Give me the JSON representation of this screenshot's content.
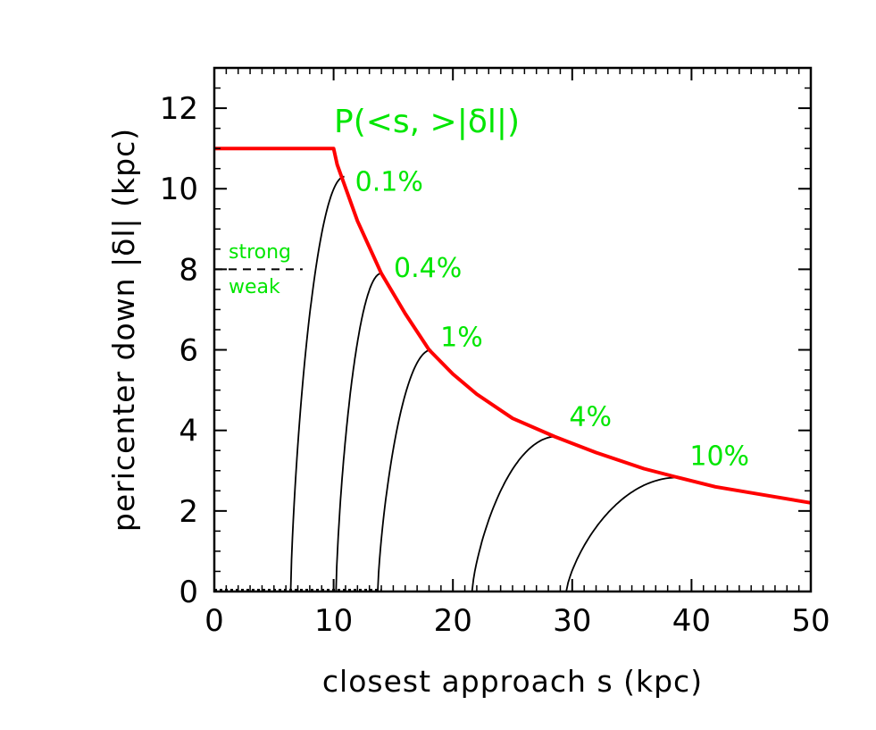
{
  "chart_data": {
    "type": "line",
    "title": "",
    "xlabel": "closest approach s (kpc)",
    "ylabel": "pericenter down |δl| (kpc)",
    "xlim": [
      0,
      50
    ],
    "ylim": [
      0,
      13
    ],
    "x_ticks": [
      0,
      10,
      20,
      30,
      40,
      50
    ],
    "x_tick_labels": [
      "0",
      "10",
      "20",
      "30",
      "40",
      "50"
    ],
    "y_ticks": [
      0,
      2,
      4,
      6,
      8,
      10,
      12
    ],
    "y_tick_labels": [
      "0",
      "2",
      "4",
      "6",
      "8",
      "10",
      "12"
    ],
    "grid": false,
    "colors": {
      "envelope": "#ff0000",
      "labels": "#00e600",
      "curves": "#000000"
    },
    "envelope": {
      "description_plateau": 11,
      "points": [
        [
          0,
          11
        ],
        [
          10,
          11
        ],
        [
          10.3,
          10.6
        ],
        [
          12,
          9.2
        ],
        [
          14,
          7.9
        ],
        [
          16,
          6.9
        ],
        [
          18,
          6.0
        ],
        [
          20,
          5.4
        ],
        [
          22,
          4.9
        ],
        [
          25,
          4.3
        ],
        [
          28.5,
          3.85
        ],
        [
          32,
          3.45
        ],
        [
          36,
          3.05
        ],
        [
          38.6,
          2.85
        ],
        [
          42,
          2.6
        ],
        [
          46,
          2.4
        ],
        [
          50,
          2.2
        ]
      ]
    },
    "series": [
      {
        "name": "0.1%",
        "start_x": 6.4,
        "peak_x": 10.9,
        "peak_y": 10.3
      },
      {
        "name": "0.4%",
        "start_x": 10.2,
        "peak_x": 14.0,
        "peak_y": 7.9
      },
      {
        "name": "1%",
        "start_x": 13.7,
        "peak_x": 18.2,
        "peak_y": 6.0
      },
      {
        "name": "4%",
        "start_x": 21.6,
        "peak_x": 28.7,
        "peak_y": 3.85
      },
      {
        "name": "10%",
        "start_x": 29.5,
        "peak_x": 38.8,
        "peak_y": 2.83
      }
    ],
    "annotations": {
      "probability_label": "P(<s, >|δl|)",
      "strong": "strong",
      "weak": "weak",
      "threshold_y": 8,
      "threshold_x": [
        0,
        7.4
      ]
    }
  }
}
